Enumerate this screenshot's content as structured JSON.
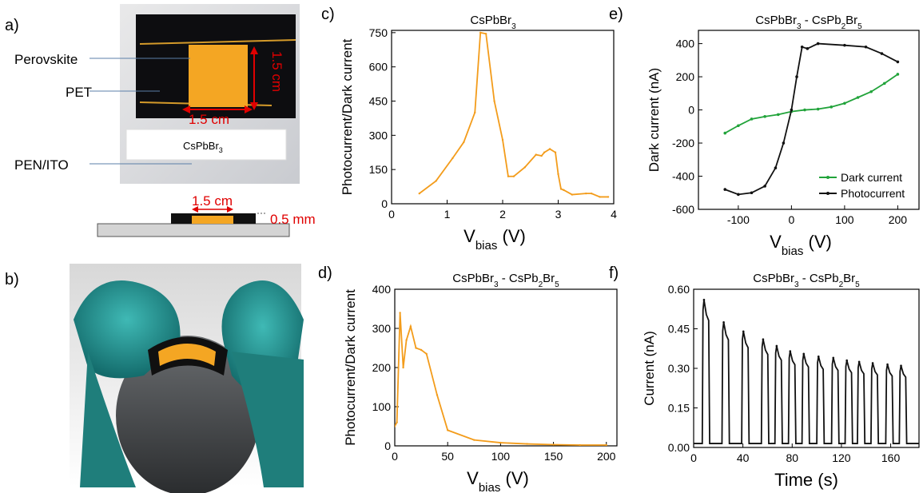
{
  "panel_labels": [
    "a)",
    "b)",
    "c)",
    "d)",
    "e)",
    "f)"
  ],
  "panel_a": {
    "labels": [
      "Perovskite",
      "PET",
      "PEN/ITO"
    ],
    "dim_vertical": "1.5 cm",
    "dim_horizontal": "1.5 cm",
    "sample_label": "CsPbBr",
    "sample_label_sub": "3",
    "schematic_width": "1.5 cm",
    "schematic_thickness": "0.5 mm"
  },
  "colors": {
    "orange": "#f39c1b",
    "green": "#21a33a",
    "black": "#111111",
    "red": "#e00000"
  },
  "chart_data": [
    {
      "id": "c",
      "type": "line",
      "title": "CsPbBr3",
      "xlabel": "Vbias (V)",
      "ylabel": "Photocurrent/Dark current",
      "xlim": [
        0,
        4
      ],
      "ylim": [
        0,
        760
      ],
      "xticks": [
        0,
        1,
        2,
        3,
        4
      ],
      "yticks": [
        0,
        150,
        300,
        450,
        600,
        750
      ],
      "series": [
        {
          "color": "#f39c1b",
          "x": [
            0.5,
            0.8,
            1.1,
            1.3,
            1.5,
            1.6,
            1.7,
            1.85,
            2.0,
            2.1,
            2.2,
            2.4,
            2.6,
            2.7,
            2.75,
            2.85,
            2.95,
            3.0,
            3.05,
            3.1,
            3.25,
            3.5,
            3.6,
            3.75,
            3.9
          ],
          "y": [
            45,
            100,
            200,
            270,
            400,
            750,
            745,
            450,
            280,
            120,
            120,
            160,
            215,
            210,
            225,
            240,
            225,
            130,
            65,
            60,
            40,
            45,
            45,
            30,
            30
          ]
        }
      ]
    },
    {
      "id": "d",
      "type": "line",
      "title": "CsPbBr3 - CsPb2Br5",
      "xlabel": "Vbias (V)",
      "ylabel": "Photocurrent/Dark current",
      "xlim": [
        0,
        210
      ],
      "ylim": [
        0,
        400
      ],
      "xticks": [
        0,
        50,
        100,
        150,
        200
      ],
      "yticks": [
        0,
        100,
        200,
        300,
        400
      ],
      "series": [
        {
          "color": "#f39c1b",
          "x": [
            0,
            2,
            5,
            8,
            11,
            15,
            20,
            25,
            30,
            40,
            50,
            75,
            100,
            125,
            150,
            175,
            200
          ],
          "y": [
            50,
            60,
            340,
            200,
            270,
            305,
            250,
            245,
            235,
            130,
            40,
            15,
            8,
            5,
            3,
            2,
            2
          ]
        }
      ]
    },
    {
      "id": "e",
      "type": "line",
      "title": "CsPbBr3 - CsPb2Br5",
      "xlabel": "Vbias (V)",
      "ylabel": "Dark current (nA)",
      "xlim": [
        -175,
        240
      ],
      "ylim": [
        -600,
        480
      ],
      "xticks": [
        -100,
        0,
        100,
        200
      ],
      "yticks": [
        -600,
        -400,
        -200,
        0,
        200,
        400
      ],
      "legend": "bottom-right",
      "series": [
        {
          "name": "Dark current",
          "color": "#21a33a",
          "x": [
            -125,
            -100,
            -75,
            -50,
            -25,
            0,
            25,
            50,
            75,
            100,
            125,
            150,
            175,
            200
          ],
          "y": [
            -140,
            -95,
            -55,
            -40,
            -28,
            -10,
            0,
            5,
            18,
            40,
            75,
            110,
            160,
            215
          ]
        },
        {
          "name": "Photocurrent",
          "color": "#111111",
          "x": [
            -125,
            -100,
            -75,
            -50,
            -30,
            -15,
            0,
            10,
            20,
            30,
            50,
            100,
            140,
            170,
            200
          ],
          "y": [
            -480,
            -510,
            -500,
            -460,
            -350,
            -200,
            0,
            200,
            380,
            370,
            400,
            390,
            380,
            340,
            290
          ]
        }
      ]
    },
    {
      "id": "f",
      "type": "line",
      "title": "CsPbBr3 - CsPb2Br5",
      "xlabel": "Time (s)",
      "ylabel": "Current (nA)",
      "xlim": [
        0,
        183
      ],
      "ylim": [
        0,
        0.6
      ],
      "xticks": [
        0,
        40,
        80,
        120,
        160
      ],
      "yticks": [
        0.0,
        0.15,
        0.3,
        0.45,
        0.6
      ],
      "pulses": {
        "color": "#111111",
        "baseline": 0.015,
        "start_times": [
          7,
          23,
          39,
          55,
          66,
          77,
          88,
          100,
          112,
          123,
          133,
          144,
          156,
          167
        ],
        "peaks": [
          0.56,
          0.475,
          0.44,
          0.41,
          0.385,
          0.365,
          0.355,
          0.345,
          0.34,
          0.33,
          0.325,
          0.32,
          0.315,
          0.31
        ]
      }
    }
  ]
}
